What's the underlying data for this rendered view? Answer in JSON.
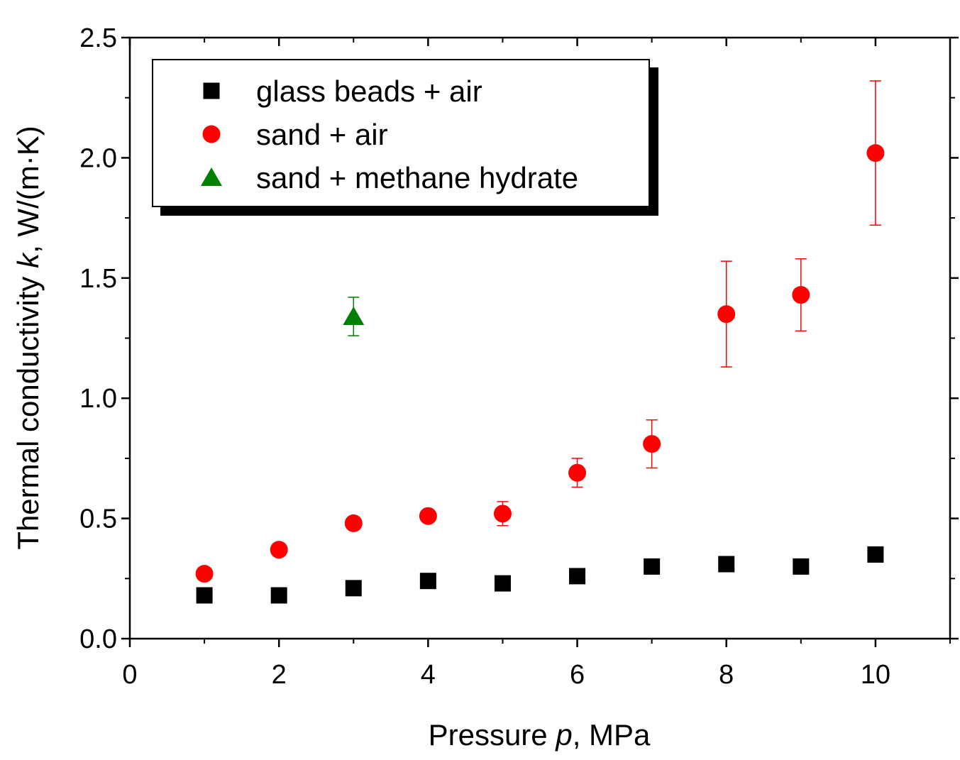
{
  "chart_data": {
    "type": "scatter",
    "title": "",
    "xlabel": {
      "prefix": "Pressure ",
      "symbol": "p",
      "suffix": ", MPa"
    },
    "ylabel": {
      "prefix": "Thermal conductivity ",
      "symbol": "k",
      "suffix": ", W/(m·K)"
    },
    "xlim": [
      0,
      11
    ],
    "ylim": [
      0,
      2.5
    ],
    "xticks": [
      0,
      2,
      4,
      6,
      8,
      10
    ],
    "xtick_labels": [
      "0",
      "2",
      "4",
      "6",
      "8",
      "10"
    ],
    "yticks": [
      0,
      0.5,
      1,
      1.5,
      2,
      2.5
    ],
    "ytick_labels": [
      "0.0",
      "0.5",
      "1.0",
      "1.5",
      "2.0",
      "2.5"
    ],
    "grid": false,
    "legend_position": "top-left",
    "series": [
      {
        "name": "glass beads + air",
        "marker": "square",
        "color": "#000000",
        "x": [
          1,
          2,
          3,
          4,
          5,
          6,
          7,
          8,
          9,
          10
        ],
        "y": [
          0.18,
          0.18,
          0.21,
          0.24,
          0.23,
          0.26,
          0.3,
          0.31,
          0.3,
          0.35
        ],
        "err": [
          0.01,
          0.01,
          0.01,
          0.01,
          0.01,
          0.01,
          0.01,
          0.01,
          0.01,
          0.02
        ]
      },
      {
        "name": "sand + air",
        "marker": "circle",
        "color": "#ff0000",
        "x": [
          1,
          2,
          3,
          4,
          5,
          6,
          7,
          8,
          9,
          10
        ],
        "y": [
          0.27,
          0.37,
          0.48,
          0.51,
          0.52,
          0.69,
          0.81,
          1.35,
          1.43,
          2.02
        ],
        "err": [
          0.01,
          0.01,
          0.01,
          0.01,
          0.05,
          0.06,
          0.1,
          0.22,
          0.15,
          0.3
        ]
      },
      {
        "name": "sand + methane hydrate",
        "marker": "triangle",
        "color": "#008000",
        "x": [
          3
        ],
        "y": [
          1.34
        ],
        "err": [
          0.08
        ]
      }
    ]
  }
}
